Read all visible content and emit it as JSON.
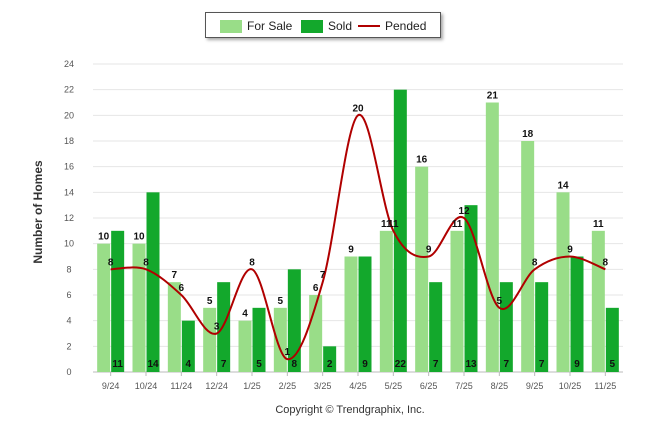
{
  "chart_data": {
    "type": "bar",
    "title": "",
    "ylabel": "Number of Homes",
    "xlabel": "",
    "ylim": [
      0,
      24
    ],
    "y_ticks": [
      0,
      2,
      4,
      6,
      8,
      10,
      12,
      14,
      16,
      18,
      20,
      22,
      24
    ],
    "categories": [
      "9/24",
      "10/24",
      "11/24",
      "12/24",
      "1/25",
      "2/25",
      "3/25",
      "4/25",
      "5/25",
      "6/25",
      "7/25",
      "8/25",
      "9/25",
      "10/25",
      "11/25"
    ],
    "series": [
      {
        "name": "For Sale",
        "kind": "bar",
        "color": "#99dd88",
        "values": [
          10,
          10,
          7,
          5,
          4,
          5,
          6,
          9,
          11,
          16,
          11,
          21,
          18,
          14,
          11
        ]
      },
      {
        "name": "Sold",
        "kind": "bar",
        "color": "#13a82c",
        "values": [
          11,
          14,
          4,
          7,
          5,
          8,
          2,
          9,
          22,
          7,
          13,
          7,
          7,
          9,
          5
        ]
      },
      {
        "name": "Pended",
        "kind": "line",
        "color": "#b00000",
        "values": [
          8,
          8,
          6,
          3,
          8,
          1,
          7,
          20,
          11,
          9,
          12,
          5,
          8,
          9,
          8
        ]
      }
    ],
    "legend_position": "top-center"
  },
  "copyright": "Copyright © Trendgraphix, Inc."
}
